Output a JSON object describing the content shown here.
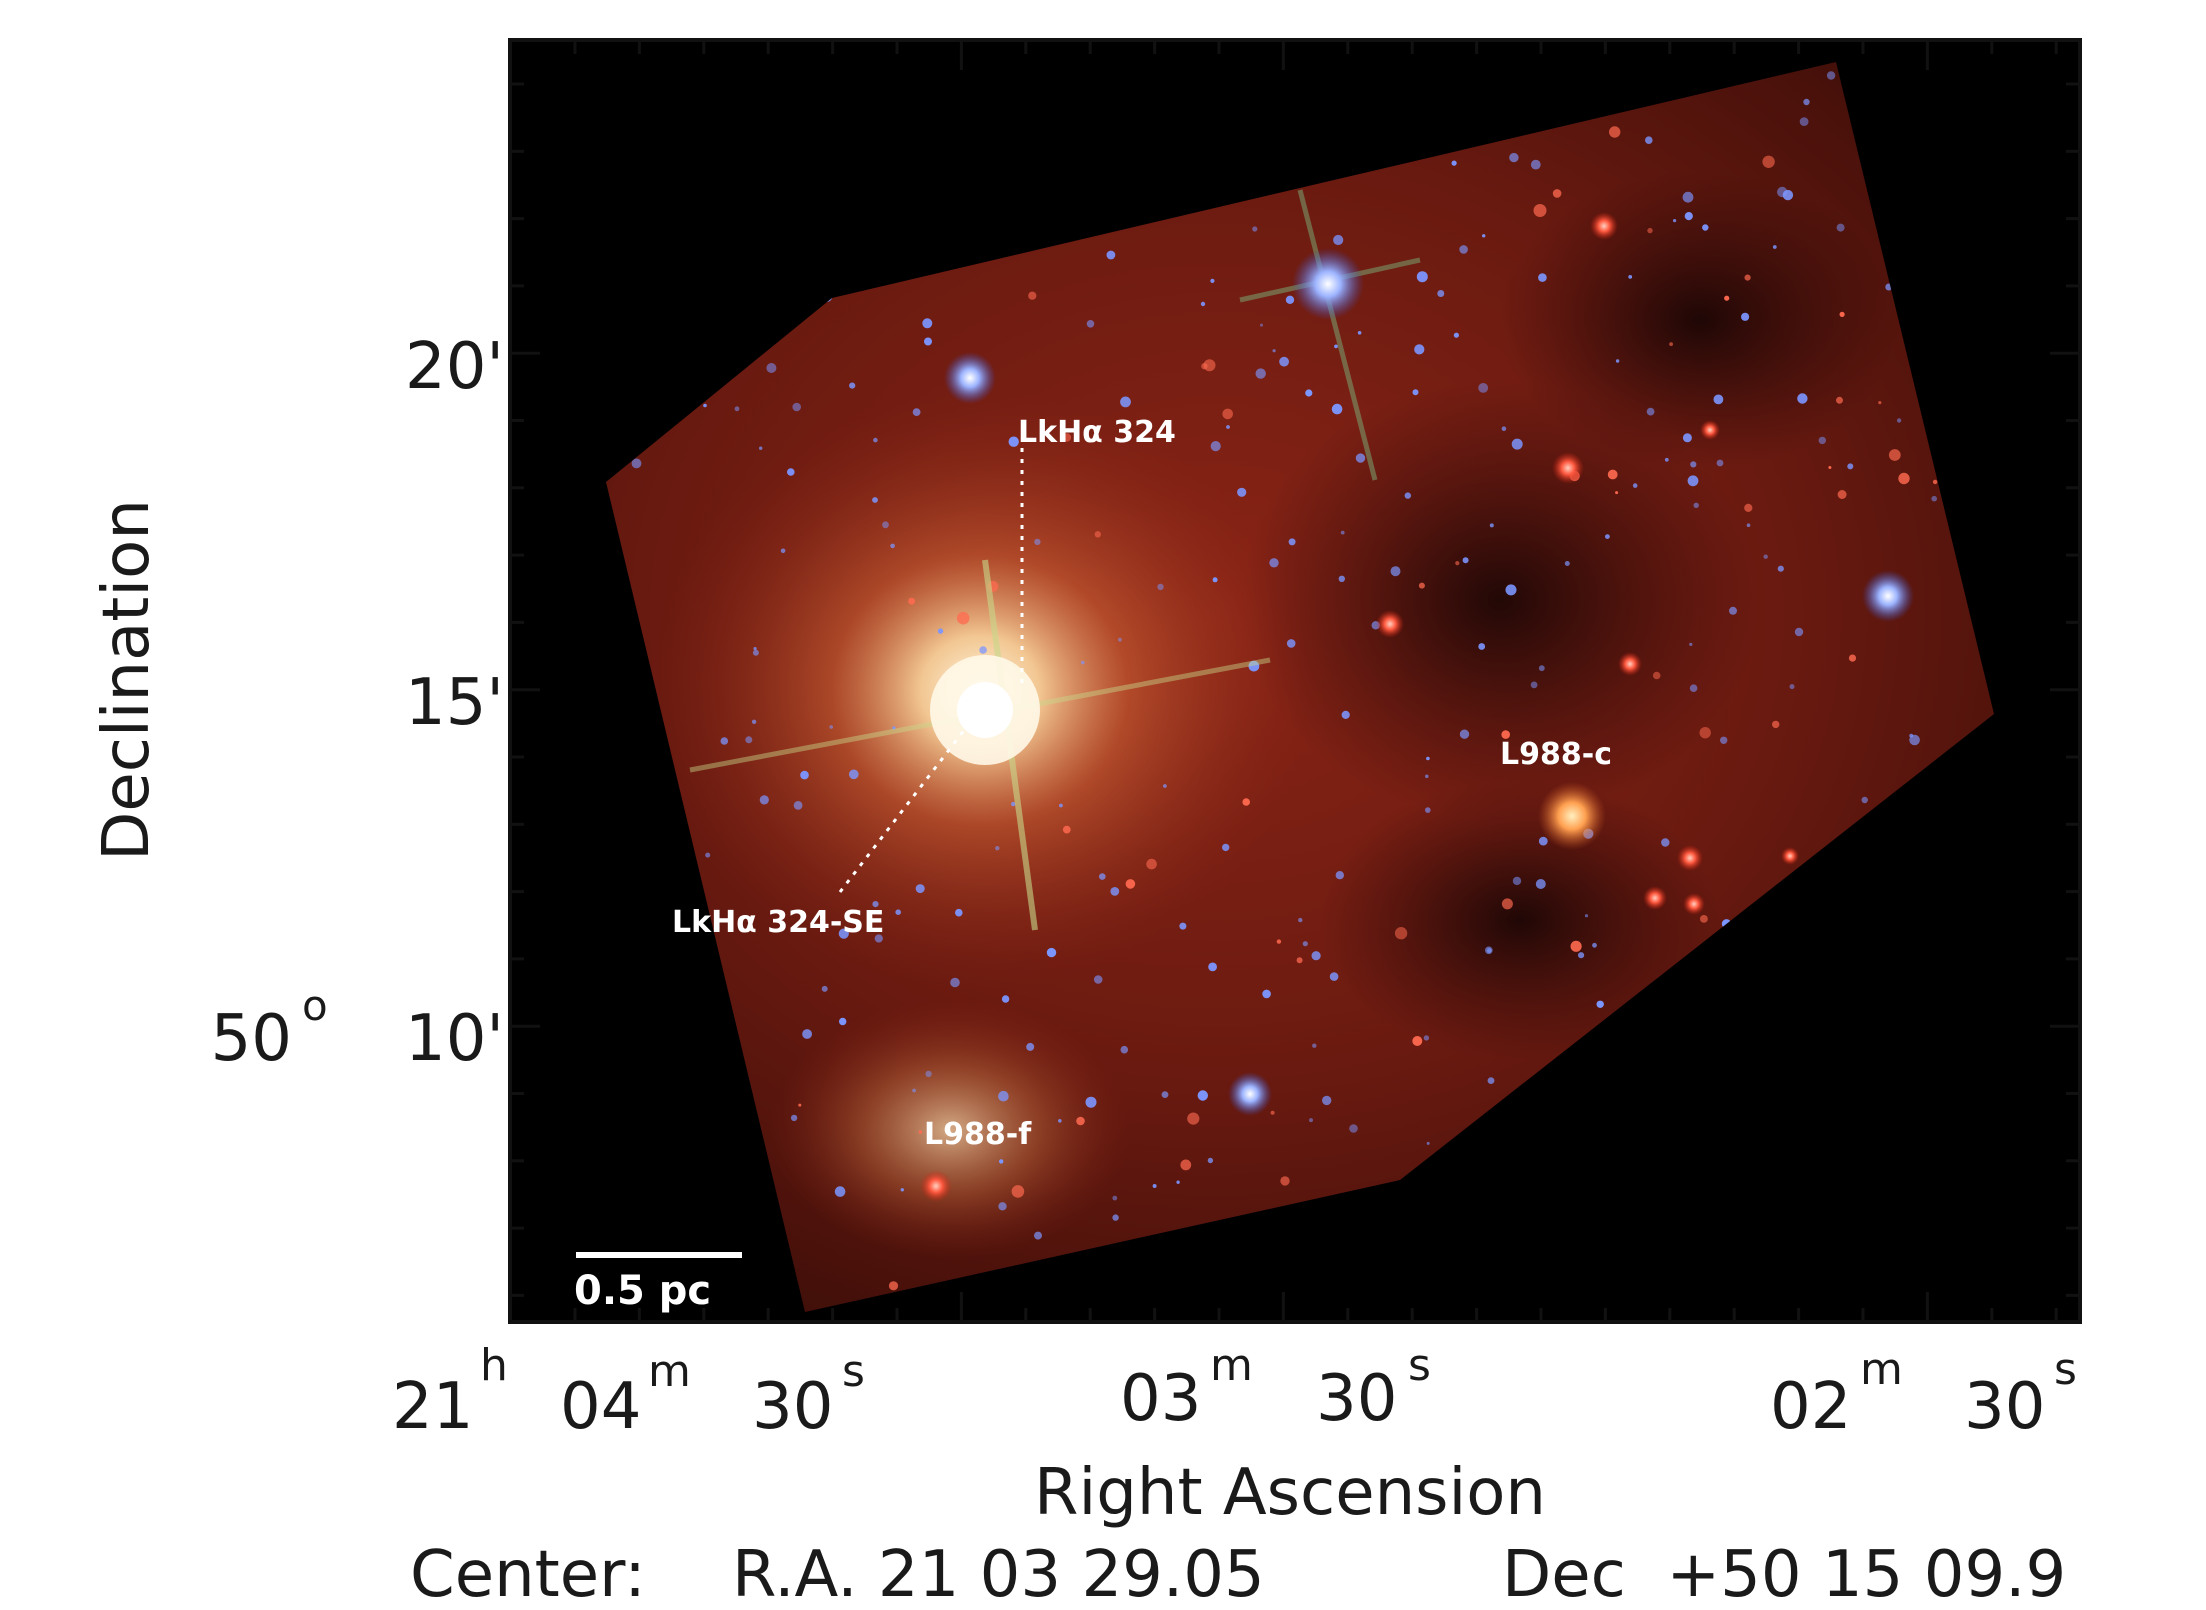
{
  "axes": {
    "xlabel": "Right Ascension",
    "ylabel": "Declination",
    "x_ticks": [
      {
        "h": "21",
        "hsup": "h",
        "m": "04",
        "msup": "m",
        "s": "30",
        "ssup": "s"
      },
      {
        "m": "03",
        "msup": "m",
        "s": "30",
        "ssup": "s"
      },
      {
        "m": "02",
        "msup": "m",
        "s": "30",
        "ssup": "s"
      }
    ],
    "y_ticks": [
      {
        "label": "20'"
      },
      {
        "label": "15'"
      },
      {
        "label": "10'",
        "deg": "50",
        "degsup": "o"
      }
    ]
  },
  "annotations": {
    "lkha324": "LkHα 324",
    "lkha324se": "LkHα 324-SE",
    "l988c": "L988-c",
    "l988f": "L988-f"
  },
  "scalebar": {
    "label": "0.5 pc"
  },
  "center": {
    "prefix": "Center:",
    "ra": "R.A. 21 03 29.05",
    "dec": "Dec  +50 15 09.9"
  },
  "colors": {
    "nebula_red": "#7a1a10",
    "nebula_dark": "#3a0a08",
    "star_blue": "#6a8cff",
    "background": "#000000"
  }
}
